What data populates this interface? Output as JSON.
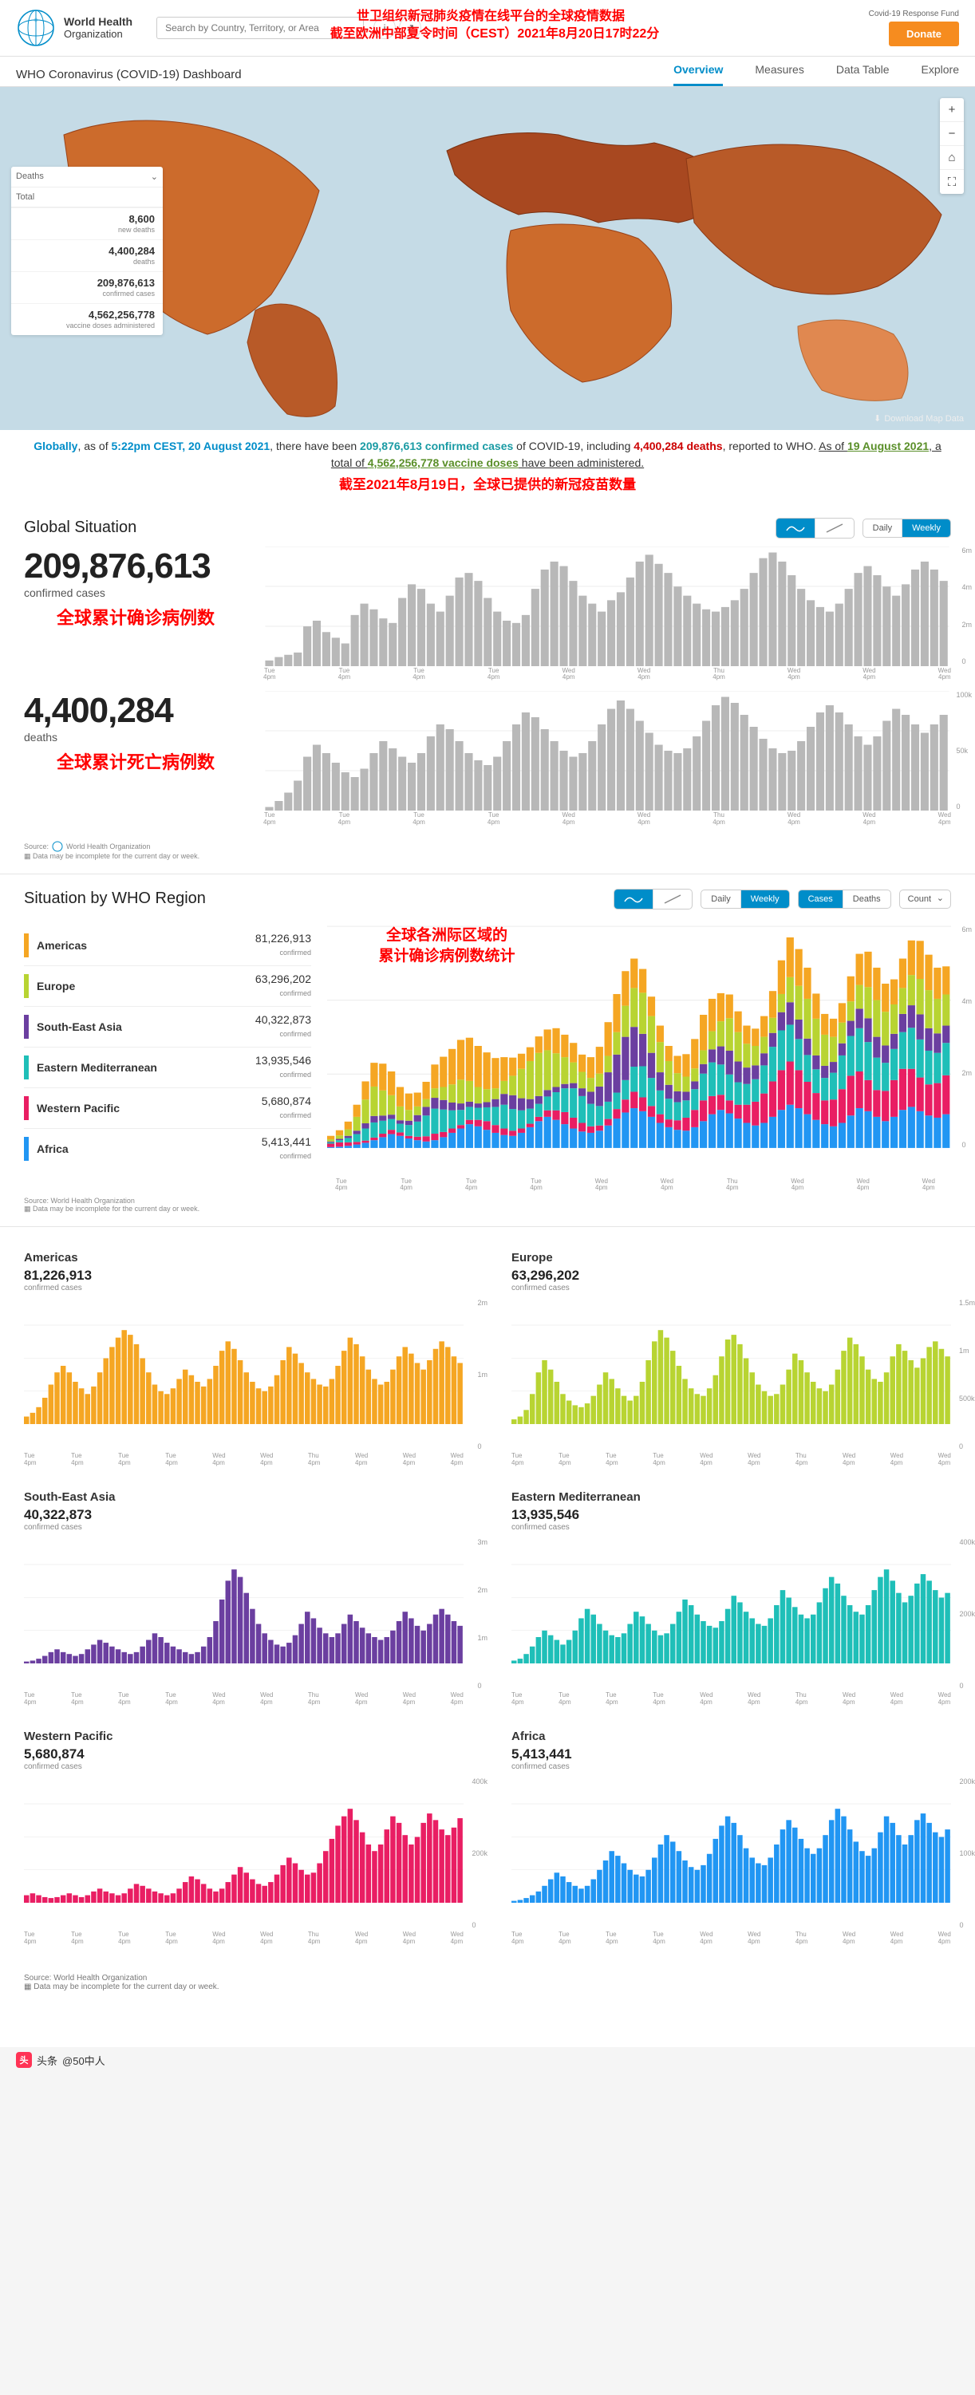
{
  "colors": {
    "who_blue": "#008dc9",
    "accent_orange": "#f68c1f",
    "map_fill": "#cc6b2c",
    "map_fill_dark": "#9a4319",
    "red_annot": "#ff0000",
    "bar_grey": "#b8b8b8",
    "grid": "#ececec"
  },
  "header": {
    "org_top": "World Health",
    "org_bot": "Organization",
    "search_placeholder": "Search by Country, Territory, or Area",
    "fund_link": "Covid-19 Response Fund",
    "donate": "Donate",
    "icon_info": "i",
    "icon_share": "↗"
  },
  "annot": {
    "top1": "世卫组织新冠肺炎疫情在线平台的全球疫情数据",
    "top2": "截至欧洲中部夏令时间（CEST）2021年8月20日17时22分",
    "mid": "截至2021年8月19日，全球已提供的新冠疫苗数量",
    "cases": "全球累计确诊病例数",
    "deaths": "全球累计死亡病例数",
    "regions_l1": "全球各洲际区域的",
    "regions_l2": "累计确诊病例数统计"
  },
  "nav": {
    "title": "WHO Coronavirus (COVID-19) Dashboard",
    "tabs": [
      "Overview",
      "Measures",
      "Data Table",
      "Explore"
    ],
    "active": 0
  },
  "map": {
    "legend_tabs": [
      "Deaths",
      "⌄"
    ],
    "legend_mode": "Total",
    "rows": [
      {
        "n": "8,600",
        "t": "new deaths"
      },
      {
        "n": "4,400,284",
        "t": "deaths"
      },
      {
        "n": "209,876,613",
        "t": "confirmed cases"
      },
      {
        "n": "4,562,256,778",
        "t": "vaccine doses administered"
      }
    ],
    "download": "Download Map Data",
    "ctrl": [
      "+",
      "−",
      "⌂",
      "⛶"
    ]
  },
  "summary": {
    "p1a": "Globally",
    "p1b": ", as of ",
    "time": "5:22pm CEST, 20 August 2021",
    "p1c": ", there have been ",
    "cases": "209,876,613 confirmed cases",
    "p1d": " of COVID-19, including ",
    "deaths": "4,400,284 deaths",
    "p1e": ", reported to WHO. ",
    "p2a": "As of ",
    "date2": "19 August 2021",
    "p2b": ", a total of ",
    "vax": "4,562,256,778 vaccine doses",
    "p2c": " have been administered."
  },
  "controls": {
    "wave": "〰",
    "line": "⟋",
    "daily": "Daily",
    "weekly": "Weekly",
    "cases": "Cases",
    "deaths": "Deaths",
    "count": "Count"
  },
  "global": {
    "title": "Global Situation",
    "cases": {
      "num": "209,876,613",
      "label": "confirmed cases"
    },
    "deaths": {
      "num": "4,400,284",
      "label": "deaths"
    },
    "source": "Source:",
    "who": "World Health Organization",
    "note": "Data may be incomplete for the current day or week.",
    "ylabels_cases": [
      "6m",
      "4m",
      "2m",
      "0"
    ],
    "ylabels_deaths": [
      "100k",
      "50k",
      "0"
    ]
  },
  "xaxis_ticks": [
    {
      "d": "Tue",
      "t": "4pm"
    },
    {
      "d": "Tue",
      "t": "4pm"
    },
    {
      "d": "Tue",
      "t": "4pm"
    },
    {
      "d": "Tue",
      "t": "4pm"
    },
    {
      "d": "Wed",
      "t": "4pm"
    },
    {
      "d": "Wed",
      "t": "4pm"
    },
    {
      "d": "Thu",
      "t": "4pm"
    },
    {
      "d": "Wed",
      "t": "4pm"
    },
    {
      "d": "Wed",
      "t": "4pm"
    },
    {
      "d": "Wed",
      "t": "4pm"
    }
  ],
  "chart_cases": {
    "color": "#b8b8b8",
    "ylim": [
      0,
      6000000
    ],
    "values": [
      5,
      8,
      10,
      12,
      35,
      40,
      30,
      25,
      20,
      45,
      55,
      50,
      42,
      38,
      60,
      72,
      68,
      55,
      48,
      62,
      78,
      82,
      75,
      60,
      48,
      40,
      38,
      45,
      68,
      85,
      92,
      88,
      75,
      62,
      55,
      48,
      58,
      65,
      78,
      92,
      98,
      90,
      82,
      70,
      62,
      55,
      50,
      48,
      52,
      58,
      68,
      82,
      95,
      100,
      92,
      80,
      68,
      58,
      52,
      48,
      55,
      68,
      82,
      88,
      80,
      70,
      62,
      72,
      85,
      92,
      85,
      75
    ]
  },
  "chart_deaths": {
    "color": "#b8b8b8",
    "ylim": [
      0,
      100000
    ],
    "values": [
      3,
      8,
      15,
      25,
      45,
      55,
      48,
      40,
      32,
      28,
      35,
      48,
      58,
      52,
      45,
      40,
      48,
      62,
      72,
      68,
      58,
      48,
      42,
      38,
      45,
      58,
      72,
      82,
      78,
      68,
      58,
      50,
      45,
      48,
      58,
      72,
      85,
      92,
      85,
      75,
      65,
      55,
      50,
      48,
      52,
      62,
      75,
      88,
      95,
      90,
      80,
      70,
      60,
      52,
      48,
      50,
      58,
      70,
      82,
      88,
      82,
      72,
      62,
      55,
      62,
      75,
      85,
      80,
      72,
      65,
      72,
      80
    ]
  },
  "region_section": {
    "title": "Situation by WHO Region"
  },
  "regions": [
    {
      "name": "Americas",
      "n": "81,226,913",
      "t": "confirmed",
      "color": "#f5a623",
      "ylabels": [
        "2m",
        "1m",
        "0"
      ],
      "values": [
        8,
        12,
        18,
        28,
        42,
        55,
        62,
        55,
        45,
        38,
        32,
        40,
        55,
        70,
        82,
        92,
        100,
        95,
        85,
        70,
        55,
        42,
        35,
        32,
        38,
        48,
        58,
        52,
        45,
        40,
        48,
        62,
        78,
        88,
        80,
        68,
        55,
        45,
        38,
        35,
        40,
        52,
        68,
        82,
        75,
        65,
        55,
        48,
        42,
        40,
        48,
        62,
        78,
        92,
        85,
        72,
        58,
        48,
        42,
        45,
        58,
        72,
        82,
        75,
        65,
        58,
        68,
        80,
        88,
        82,
        72,
        65
      ]
    },
    {
      "name": "Europe",
      "n": "63,296,202",
      "t": "confirmed",
      "color": "#b8d432",
      "ylabels": [
        "1.5m",
        "1m",
        "500k",
        "0"
      ],
      "values": [
        5,
        8,
        15,
        32,
        55,
        68,
        58,
        45,
        32,
        25,
        20,
        18,
        22,
        30,
        42,
        55,
        48,
        38,
        30,
        25,
        30,
        45,
        68,
        88,
        100,
        92,
        78,
        62,
        48,
        38,
        32,
        30,
        38,
        52,
        72,
        90,
        95,
        85,
        70,
        55,
        42,
        35,
        30,
        32,
        42,
        58,
        75,
        68,
        55,
        45,
        38,
        35,
        42,
        58,
        78,
        92,
        85,
        72,
        58,
        48,
        45,
        55,
        72,
        85,
        78,
        68,
        60,
        70,
        82,
        88,
        80,
        72
      ]
    },
    {
      "name": "South-East Asia",
      "n": "40,322,873",
      "t": "confirmed",
      "color": "#6b3fa0",
      "ylabels": [
        "3m",
        "2m",
        "1m",
        "0"
      ],
      "values": [
        2,
        3,
        5,
        8,
        12,
        15,
        12,
        10,
        8,
        10,
        15,
        20,
        25,
        22,
        18,
        15,
        12,
        10,
        12,
        18,
        25,
        32,
        28,
        22,
        18,
        15,
        12,
        10,
        12,
        18,
        28,
        45,
        68,
        88,
        100,
        92,
        75,
        58,
        42,
        32,
        25,
        20,
        18,
        22,
        30,
        42,
        55,
        48,
        38,
        32,
        28,
        32,
        42,
        52,
        45,
        38,
        32,
        28,
        25,
        28,
        35,
        45,
        55,
        48,
        40,
        35,
        42,
        52,
        58,
        52,
        45,
        40
      ]
    },
    {
      "name": "Eastern Mediterranean",
      "n": "13,935,546",
      "t": "confirmed",
      "color": "#1fbfb8",
      "ylabels": [
        "400k",
        "200k",
        "0"
      ],
      "values": [
        3,
        5,
        10,
        18,
        28,
        35,
        30,
        25,
        20,
        25,
        35,
        48,
        58,
        52,
        42,
        35,
        30,
        28,
        32,
        42,
        55,
        50,
        42,
        35,
        30,
        32,
        42,
        55,
        68,
        62,
        52,
        45,
        40,
        38,
        45,
        58,
        72,
        65,
        55,
        48,
        42,
        40,
        48,
        62,
        78,
        70,
        60,
        52,
        48,
        52,
        65,
        80,
        92,
        85,
        72,
        62,
        55,
        52,
        62,
        78,
        92,
        100,
        88,
        75,
        65,
        72,
        85,
        95,
        88,
        78,
        70,
        75
      ]
    },
    {
      "name": "Western Pacific",
      "n": "5,680,874",
      "t": "confirmed",
      "color": "#e91e63",
      "ylabels": [
        "400k",
        "200k",
        "0"
      ],
      "values": [
        8,
        10,
        8,
        6,
        5,
        6,
        8,
        10,
        8,
        6,
        8,
        12,
        15,
        12,
        10,
        8,
        10,
        15,
        20,
        18,
        15,
        12,
        10,
        8,
        10,
        15,
        22,
        28,
        25,
        20,
        15,
        12,
        15,
        22,
        30,
        38,
        32,
        25,
        20,
        18,
        22,
        30,
        40,
        48,
        42,
        35,
        30,
        32,
        42,
        55,
        68,
        82,
        92,
        100,
        88,
        75,
        62,
        55,
        62,
        78,
        92,
        85,
        72,
        62,
        70,
        85,
        95,
        88,
        78,
        72,
        80,
        90
      ]
    },
    {
      "name": "Africa",
      "n": "5,413,441",
      "t": "confirmed",
      "color": "#2196f3",
      "ylabels": [
        "200k",
        "100k",
        "0"
      ],
      "values": [
        2,
        3,
        5,
        8,
        12,
        18,
        25,
        32,
        28,
        22,
        18,
        15,
        18,
        25,
        35,
        45,
        55,
        50,
        42,
        35,
        30,
        28,
        35,
        48,
        62,
        72,
        65,
        55,
        45,
        38,
        35,
        40,
        52,
        68,
        82,
        92,
        85,
        72,
        58,
        48,
        42,
        40,
        48,
        62,
        78,
        88,
        80,
        68,
        58,
        52,
        58,
        72,
        88,
        100,
        92,
        78,
        65,
        55,
        50,
        58,
        75,
        92,
        85,
        72,
        62,
        72,
        88,
        95,
        85,
        75,
        70,
        78
      ]
    }
  ],
  "stacked_chart": {
    "ylabels": [
      "6m",
      "4m",
      "2m",
      "0"
    ]
  },
  "footer": {
    "source": "Source: World Health Organization",
    "note": "Data may be incomplete for the current day or week."
  },
  "credit": {
    "prefix": "头条",
    "handle": "@50中人"
  }
}
